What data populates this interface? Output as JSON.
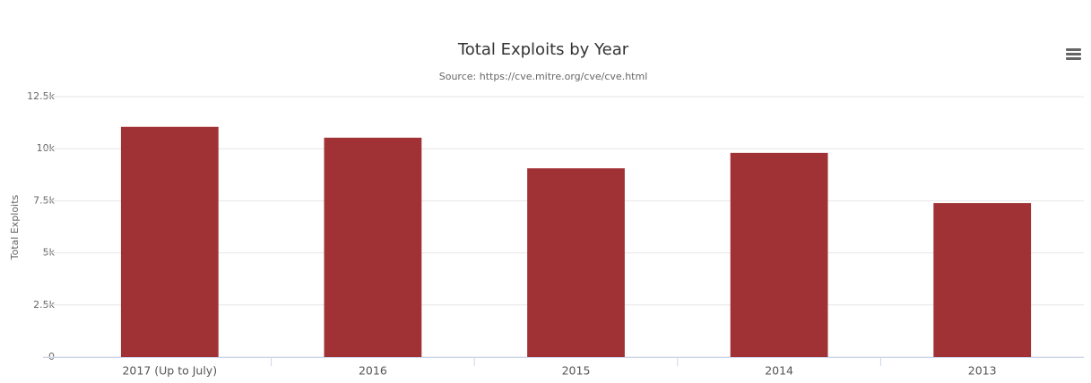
{
  "chart_data": {
    "type": "bar",
    "title": "Total Exploits by Year",
    "subtitle": "Source: https://cve.mitre.org/cve/cve.html",
    "y_label": "Total Exploits",
    "categories": [
      "2017 (Up to July)",
      "2016",
      "2015",
      "2014",
      "2013"
    ],
    "values": [
      11050,
      10530,
      9060,
      9800,
      7390
    ],
    "color": "#a03134",
    "ylim": [
      0,
      12500
    ],
    "yticks": [
      0,
      {
        "value": 2500,
        "label": "2.5k"
      },
      {
        "value": 5000,
        "label": "5k"
      },
      {
        "value": 7500,
        "label": "7.5k"
      },
      {
        "value": 10000,
        "label": "10k"
      },
      {
        "value": 12500,
        "label": "12.5k"
      }
    ],
    "grid": true
  }
}
